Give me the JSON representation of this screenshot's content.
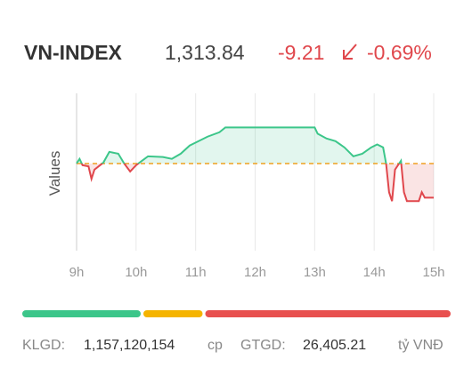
{
  "header": {
    "title": "VN-INDEX",
    "value": "1,313.84",
    "change": "-9.21",
    "change_percent": "-0.69%"
  },
  "chart_data": {
    "type": "line",
    "ylabel": "Values",
    "x": [
      9.0,
      9.05,
      9.1,
      9.2,
      9.25,
      9.3,
      9.45,
      9.55,
      9.7,
      9.8,
      9.9,
      10.0,
      10.1,
      10.2,
      10.45,
      10.6,
      10.75,
      10.9,
      11.05,
      11.2,
      11.4,
      11.5,
      12.0,
      13.0,
      13.05,
      13.2,
      13.35,
      13.5,
      13.65,
      13.8,
      13.95,
      14.05,
      14.15,
      14.2,
      14.25,
      14.3,
      14.35,
      14.45,
      14.5,
      14.55,
      14.75,
      14.8,
      14.85,
      15.0
    ],
    "values": [
      1323.05,
      1324.3,
      1322.6,
      1322.3,
      1318.9,
      1321.4,
      1323.3,
      1326.2,
      1325.7,
      1323.05,
      1320.9,
      1322.6,
      1323.8,
      1325.0,
      1324.8,
      1324.3,
      1325.7,
      1327.9,
      1329.1,
      1330.3,
      1331.5,
      1332.8,
      1332.8,
      1332.8,
      1331.1,
      1329.8,
      1329.1,
      1327.4,
      1325.0,
      1325.7,
      1327.4,
      1328.2,
      1327.4,
      1323.05,
      1315.3,
      1312.9,
      1321.4,
      1323.8,
      1315.3,
      1312.9,
      1312.9,
      1315.3,
      1313.84,
      1313.84
    ],
    "reference": 1323.05,
    "up_color": "#3cc68a",
    "down_color": "#e0474c",
    "reference_color": "#f0a020",
    "xlim": [
      9,
      15
    ],
    "xticks": [
      {
        "value": 9,
        "label": "9h"
      },
      {
        "value": 10,
        "label": "10h"
      },
      {
        "value": 11,
        "label": "11h"
      },
      {
        "value": 12,
        "label": "12h"
      },
      {
        "value": 13,
        "label": "13h"
      },
      {
        "value": 14,
        "label": "14h"
      },
      {
        "value": 15,
        "label": "15h"
      }
    ],
    "ylim": [
      1300,
      1342
    ],
    "grid": true
  },
  "breadth": [
    {
      "color": "#3cc68a",
      "value": 28
    },
    {
      "color": "#f5b400",
      "value": 14
    },
    {
      "color": "#e8504f",
      "value": 58
    }
  ],
  "footer": {
    "volume_label": "KLGD:",
    "volume": "1,157,120,154",
    "volume_unit": "cp",
    "turnover_label": "GTGD:",
    "turnover": "26,405.21",
    "turnover_unit": "tỷ VNĐ"
  }
}
